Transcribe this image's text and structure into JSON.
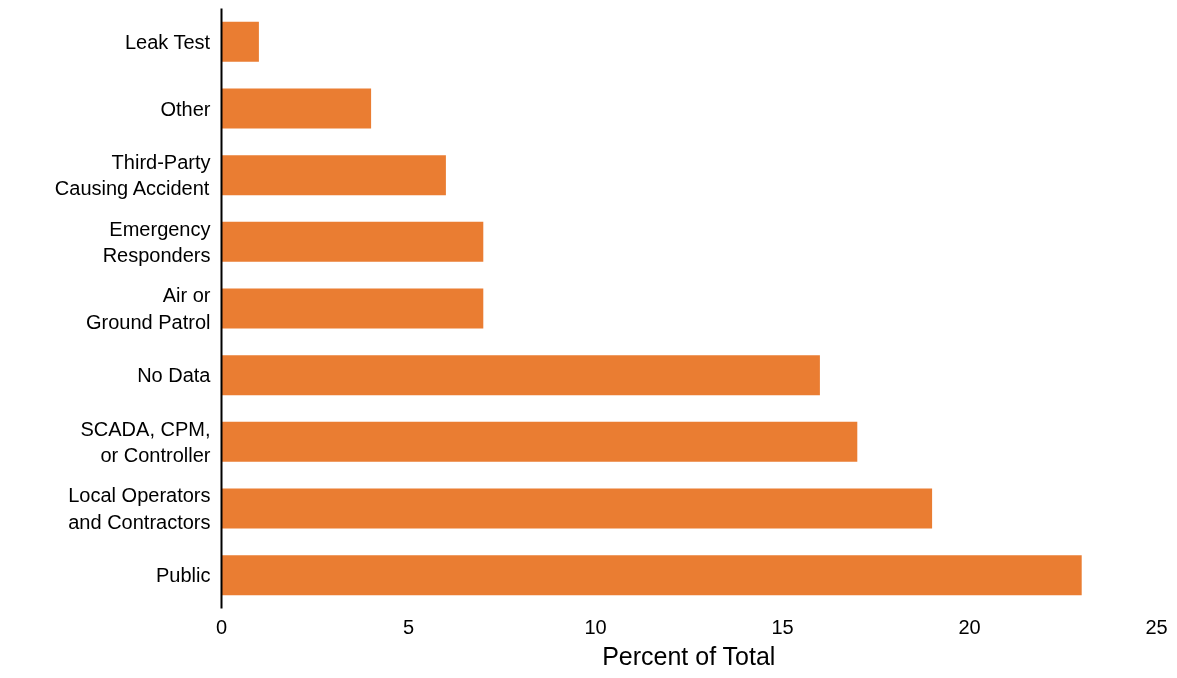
{
  "chart_data": {
    "type": "bar",
    "orientation": "horizontal",
    "xlabel": "Percent of Total",
    "categories": [
      "Leak Test",
      "Other",
      "Third-Party\nCausing Accident",
      "Emergency\nResponders",
      "Air or\nGround Patrol",
      "No Data",
      "SCADA, CPM,\nor Controller",
      "Local Operators\nand Contractors",
      "Public"
    ],
    "values": [
      1,
      4,
      6,
      7,
      7,
      16,
      17,
      19,
      23
    ],
    "color": "#ea7d32",
    "xlim": [
      0,
      25
    ],
    "xticks": [
      0,
      5,
      10,
      15,
      20,
      25
    ],
    "grid": false
  }
}
